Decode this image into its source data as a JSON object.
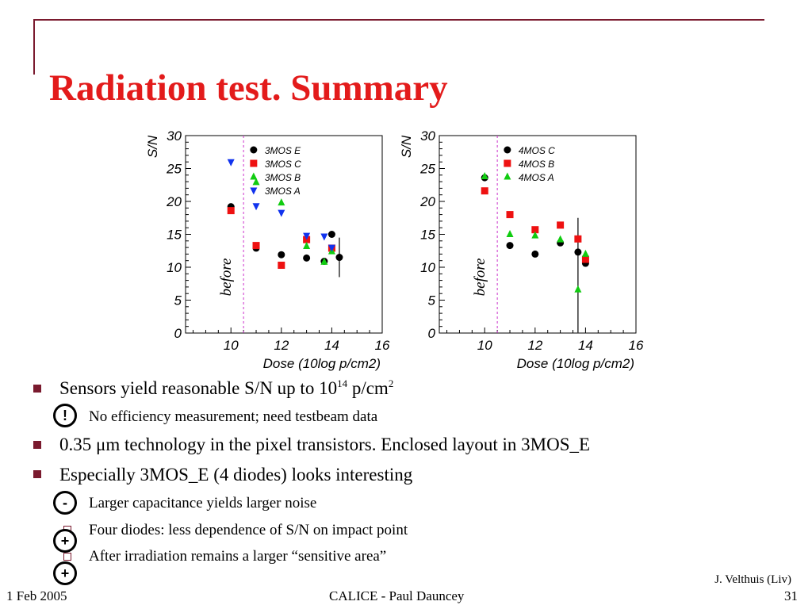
{
  "slide": {
    "title": "Radiation test. Summary",
    "credit": "J. Velthuis (Liv)",
    "footer_left": "1 Feb 2005",
    "footer_center": "CALICE - Paul Dauncey",
    "page_number": "31"
  },
  "bullets": [
    {
      "pre": "Sensors yield reasonable S/N up to 10",
      "sup1": "14",
      "mid": " p/cm",
      "sup2": "2"
    },
    {
      "text": "No efficiency measurement; need testbeam data",
      "mark": "!"
    },
    {
      "text": "0.35 μm technology in the pixel transistors. Enclosed layout in 3MOS_E"
    },
    {
      "text": "Especially 3MOS_E (4 diodes) looks interesting"
    },
    {
      "text": "Larger capacitance yields larger noise",
      "mark": "-"
    },
    {
      "text": "Four diodes: less dependence of S/N on impact point",
      "mark": "+"
    },
    {
      "text": "After irradiation remains a larger “sensitive area”",
      "mark": "+"
    }
  ],
  "colors": {
    "title": "#e31b1b",
    "rule": "#7a1a2e",
    "before_line": "#cc33cc"
  },
  "chart_data": [
    {
      "type": "scatter",
      "xlabel": "Dose (10log p/cm2)",
      "ylabel": "S/N",
      "xlim": [
        8.2,
        16
      ],
      "ylim": [
        0,
        30
      ],
      "xticks": [
        "10",
        "12",
        "14",
        "16"
      ],
      "yticks": [
        "0",
        "5",
        "10",
        "15",
        "20",
        "25",
        "30"
      ],
      "before_label": "before",
      "before_x": 10.5,
      "series": [
        {
          "name": "3MOS E",
          "marker": "circle",
          "color": "#000000",
          "points": [
            [
              10,
              19.2
            ],
            [
              11,
              12.9
            ],
            [
              12,
              11.9
            ],
            [
              13,
              11.4
            ],
            [
              13.7,
              10.9
            ],
            [
              14,
              15.0
            ],
            [
              14.3,
              11.5
            ]
          ]
        },
        {
          "name": "3MOS C",
          "marker": "square",
          "color": "#ee1111",
          "points": [
            [
              10,
              18.6
            ],
            [
              11,
              13.3
            ],
            [
              12,
              10.3
            ],
            [
              13,
              14.2
            ],
            [
              14,
              12.9
            ]
          ]
        },
        {
          "name": "3MOS B",
          "marker": "triangle-up",
          "color": "#11cc11",
          "points": [
            [
              11,
              22.9
            ],
            [
              12,
              19.8
            ],
            [
              13,
              13.2
            ],
            [
              13.7,
              10.8
            ],
            [
              14,
              12.4
            ]
          ]
        },
        {
          "name": "3MOS A",
          "marker": "triangle-down",
          "color": "#1133ee",
          "points": [
            [
              10,
              26.0
            ],
            [
              11,
              19.3
            ],
            [
              12,
              18.3
            ],
            [
              13,
              14.8
            ],
            [
              13.7,
              14.7
            ],
            [
              14,
              13.0
            ]
          ]
        }
      ],
      "error_bars": [
        {
          "x": 14.3,
          "low": 8.5,
          "high": 14.5
        }
      ]
    },
    {
      "type": "scatter",
      "xlabel": "Dose (10log p/cm2)",
      "ylabel": "S/N",
      "xlim": [
        8.2,
        16
      ],
      "ylim": [
        0,
        30
      ],
      "xticks": [
        "10",
        "12",
        "14",
        "16"
      ],
      "yticks": [
        "0",
        "5",
        "10",
        "15",
        "20",
        "25",
        "30"
      ],
      "before_label": "before",
      "before_x": 10.5,
      "series": [
        {
          "name": "4MOS C",
          "marker": "circle",
          "color": "#000000",
          "points": [
            [
              10,
              23.6
            ],
            [
              11,
              13.3
            ],
            [
              12,
              12.0
            ],
            [
              13,
              13.7
            ],
            [
              13.7,
              12.3
            ],
            [
              14,
              10.6
            ]
          ]
        },
        {
          "name": "4MOS B",
          "marker": "square",
          "color": "#ee1111",
          "points": [
            [
              10,
              21.6
            ],
            [
              11,
              18.0
            ],
            [
              12,
              15.7
            ],
            [
              13,
              16.4
            ],
            [
              13.7,
              14.3
            ],
            [
              14,
              11.2
            ]
          ]
        },
        {
          "name": "4MOS A",
          "marker": "triangle-up",
          "color": "#11cc11",
          "points": [
            [
              10,
              23.8
            ],
            [
              11,
              15.0
            ],
            [
              12,
              14.8
            ],
            [
              13,
              14.2
            ],
            [
              13.7,
              6.6
            ],
            [
              14,
              12.0
            ]
          ]
        }
      ],
      "error_bars": [
        {
          "x": 13.7,
          "low": 0,
          "high": 17.5
        }
      ]
    }
  ]
}
